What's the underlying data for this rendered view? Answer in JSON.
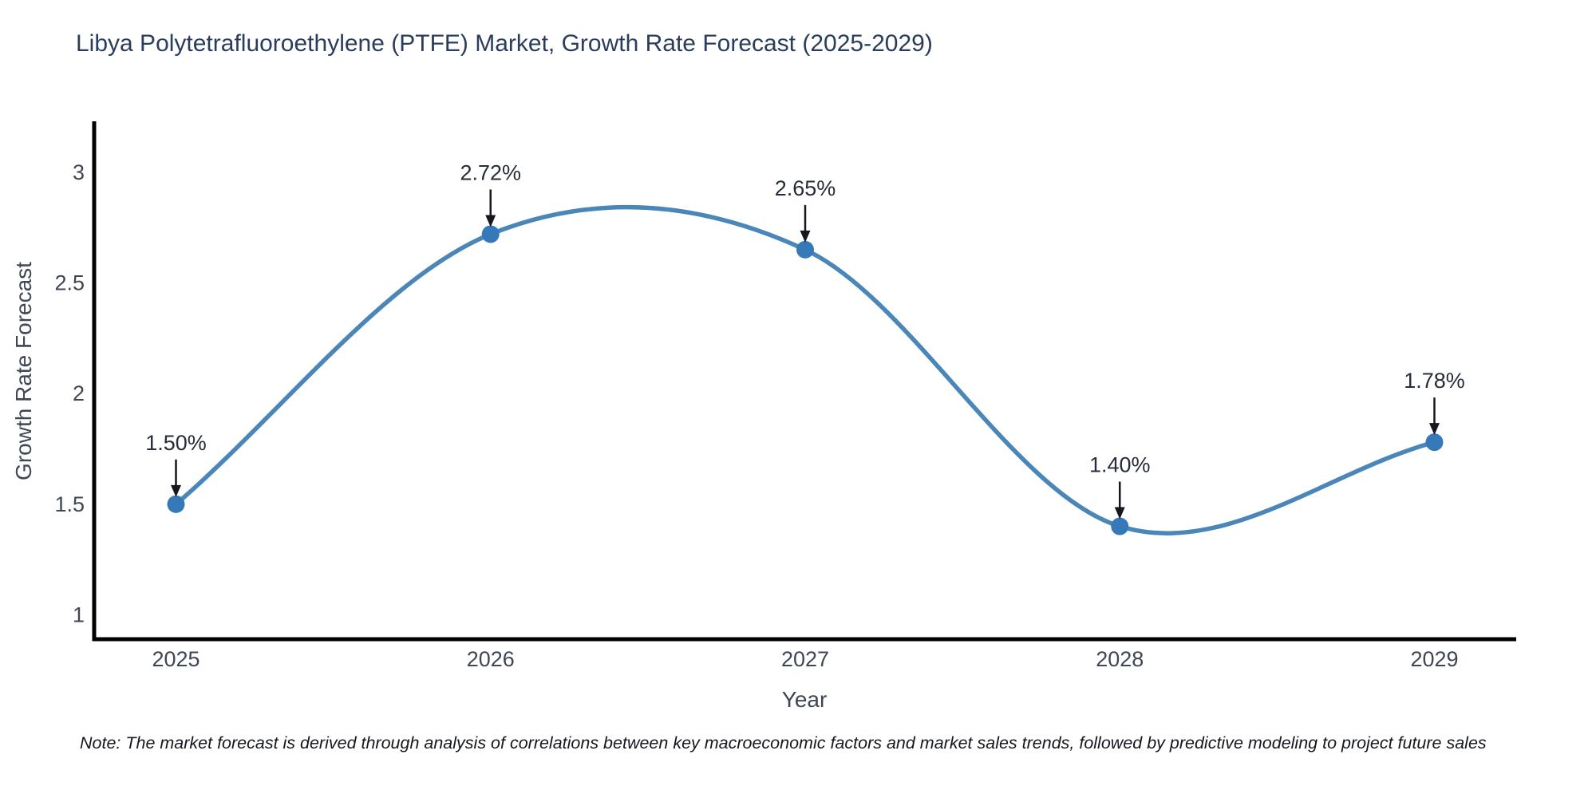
{
  "chart_data": {
    "type": "line",
    "title": "Libya Polytetrafluoroethylene (PTFE) Market, Growth Rate Forecast (2025-2029)",
    "xlabel": "Year",
    "ylabel": "Growth Rate Forecast",
    "x": [
      2025,
      2026,
      2027,
      2028,
      2029
    ],
    "xtick_labels": [
      "2025",
      "2026",
      "2027",
      "2028",
      "2029"
    ],
    "series": [
      {
        "name": "Growth Rate Forecast",
        "values": [
          1.5,
          2.72,
          2.65,
          1.4,
          1.78
        ]
      }
    ],
    "point_labels": [
      "1.50%",
      "2.72%",
      "2.65%",
      "1.40%",
      "1.78%"
    ],
    "yticks": [
      {
        "value": 1,
        "label": "1"
      },
      {
        "value": 1.5,
        "label": "1.5"
      },
      {
        "value": 2,
        "label": "2"
      },
      {
        "value": 2.5,
        "label": "2.5"
      },
      {
        "value": 3,
        "label": "3"
      }
    ],
    "xlim": [
      2024.74,
      2029.26
    ],
    "ylim": [
      0.89,
      3.23
    ],
    "grid": false,
    "legend_position": "none",
    "line_shape": "spline",
    "colors": {
      "line": "#4b86b8",
      "marker": "#3679b8",
      "axis": "#000000",
      "tick_text": "#3f4654",
      "annotation_text": "#262c38",
      "arrow": "#15171c",
      "title_text": "#2b3d5c"
    },
    "note": "Note: The market forecast is derived through analysis of correlations between key macroeconomic factors and market sales trends, followed by predictive modeling to project future sales"
  }
}
